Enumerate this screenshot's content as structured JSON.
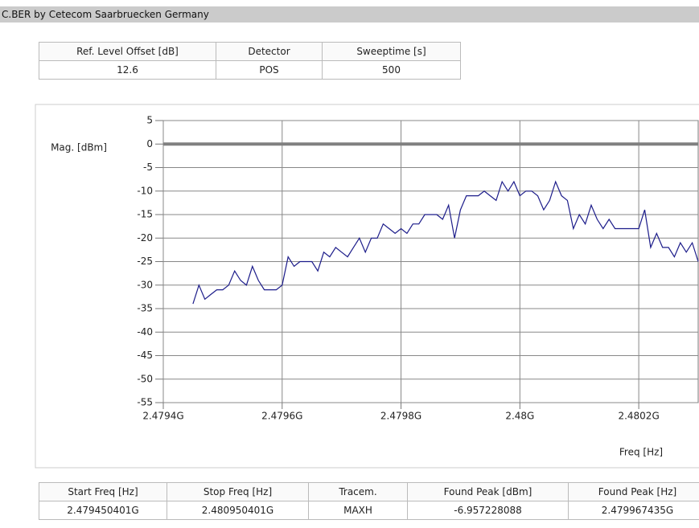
{
  "header": {
    "title": "C.BER by Cetecom Saarbruecken Germany"
  },
  "top_table": {
    "headers": [
      "Ref. Level Offset [dB]",
      "Detector",
      "Sweeptime [s]"
    ],
    "rows": [
      [
        "12.6",
        "POS",
        "500"
      ]
    ]
  },
  "chart_data": {
    "type": "line",
    "ylabel": "Mag. [dBm]",
    "xlabel": "Freq [Hz]",
    "xlim": [
      2.4794,
      2.4803
    ],
    "ylim": [
      -55,
      5
    ],
    "xticks": [
      {
        "value": 2.4794,
        "label": "2.4794G"
      },
      {
        "value": 2.4796,
        "label": "2.4796G"
      },
      {
        "value": 2.4798,
        "label": "2.4798G"
      },
      {
        "value": 2.48,
        "label": "2.48G"
      },
      {
        "value": 2.4802,
        "label": "2.4802G"
      }
    ],
    "yticks": [
      5,
      0,
      -5,
      -10,
      -15,
      -20,
      -25,
      -30,
      -35,
      -40,
      -45,
      -50,
      -55
    ],
    "grid": true,
    "reference_line": 0,
    "x": [
      2.47945,
      2.47946,
      2.47947,
      2.47948,
      2.47949,
      2.4795,
      2.47951,
      2.47952,
      2.47953,
      2.47954,
      2.47955,
      2.47956,
      2.47957,
      2.47958,
      2.47959,
      2.4796,
      2.47961,
      2.47962,
      2.47963,
      2.47964,
      2.47965,
      2.47966,
      2.47967,
      2.47968,
      2.47969,
      2.4797,
      2.47971,
      2.47972,
      2.47973,
      2.47974,
      2.47975,
      2.47976,
      2.47977,
      2.47978,
      2.47979,
      2.4798,
      2.47981,
      2.47982,
      2.47983,
      2.47984,
      2.47985,
      2.47986,
      2.47987,
      2.47988,
      2.47989,
      2.4799,
      2.47991,
      2.47992,
      2.47993,
      2.47994,
      2.47995,
      2.47996,
      2.47997,
      2.47998,
      2.47999,
      2.48,
      2.48001,
      2.48002,
      2.48003,
      2.48004,
      2.48005,
      2.48006,
      2.48007,
      2.48008,
      2.48009,
      2.4801,
      2.48011,
      2.48012,
      2.48013,
      2.48014,
      2.48015,
      2.48016,
      2.48017,
      2.48018,
      2.48019,
      2.4802,
      2.48021,
      2.48022,
      2.48023,
      2.48024,
      2.48025,
      2.48026,
      2.48027,
      2.48028,
      2.48029,
      2.4803
    ],
    "series": [
      {
        "color": "#1c1c8a",
        "values": [
          -34,
          -30,
          -33,
          -32,
          -31,
          -31,
          -30,
          -27,
          -29,
          -30,
          -26,
          -29,
          -31,
          -31,
          -31,
          -30,
          -24,
          -26,
          -25,
          -25,
          -25,
          -27,
          -23,
          -24,
          -22,
          -23,
          -24,
          -22,
          -20,
          -23,
          -20,
          -20,
          -17,
          -18,
          -19,
          -18,
          -19,
          -17,
          -17,
          -15,
          -15,
          -15,
          -16,
          -13,
          -20,
          -14,
          -11,
          -11,
          -11,
          -10,
          -11,
          -12,
          -8,
          -10,
          -8,
          -11,
          -10,
          -10,
          -11,
          -14,
          -12,
          -8,
          -11,
          -12,
          -18,
          -15,
          -17,
          -13,
          -16,
          -18,
          -16,
          -18,
          -18,
          -18,
          -18,
          -18,
          -14,
          -22,
          -19,
          -22,
          -22,
          -24,
          -21,
          -23,
          -21,
          -25
        ]
      }
    ]
  },
  "bottom_table": {
    "headers": [
      "Start Freq [Hz]",
      "Stop Freq [Hz]",
      "Tracem.",
      "Found Peak [dBm]",
      "Found Peak [Hz]"
    ],
    "rows": [
      [
        "2.479450401G",
        "2.480950401G",
        "MAXH",
        "-6.957228088",
        "2.479967435G"
      ]
    ]
  }
}
